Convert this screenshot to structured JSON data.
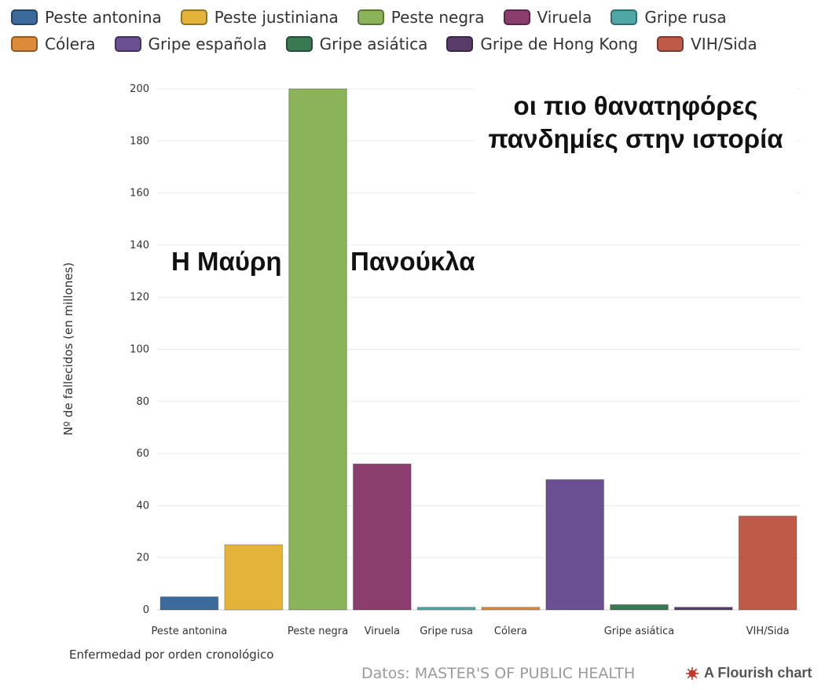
{
  "chart_data": {
    "type": "bar",
    "title": "οι πιο θανατηφόρες πανδημίες στην ιστορία",
    "xlabel": "Enfermedad por orden cronológico",
    "ylabel": "Nº de fallecidos (en millones)",
    "ylim": [
      0,
      200
    ],
    "yticks": [
      0,
      20,
      40,
      60,
      80,
      100,
      120,
      140,
      160,
      180,
      200
    ],
    "grid": true,
    "legend_position": "top",
    "categories": [
      "Peste antonina",
      "Peste justiniana",
      "Peste negra",
      "Viruela",
      "Gripe rusa",
      "Cólera",
      "Gripe española",
      "Gripe asiática",
      "Gripe de Hong Kong",
      "VIH/Sida"
    ],
    "x_tick_labels": [
      "Peste antonina",
      "",
      "Peste negra",
      "Viruela",
      "Gripe rusa",
      "Cólera",
      "",
      "Gripe asiática",
      "",
      "VIH/Sida"
    ],
    "values": [
      5,
      25,
      200,
      56,
      1,
      1,
      50,
      2,
      1,
      36
    ],
    "colors": [
      "#3c6a9b",
      "#e4b43a",
      "#8ab35a",
      "#8b3d6d",
      "#4fa7a6",
      "#dc8b39",
      "#6a4f93",
      "#3a7a53",
      "#5a3c6a",
      "#bf5a48"
    ],
    "annotations": [
      "Η Μαύρη",
      "Πανούκλα"
    ]
  },
  "footer": {
    "source": "Datos: MASTER'S OF PUBLIC HEALTH",
    "credit": "A Flourish chart",
    "credit_icon": "flourish-logo-icon"
  }
}
